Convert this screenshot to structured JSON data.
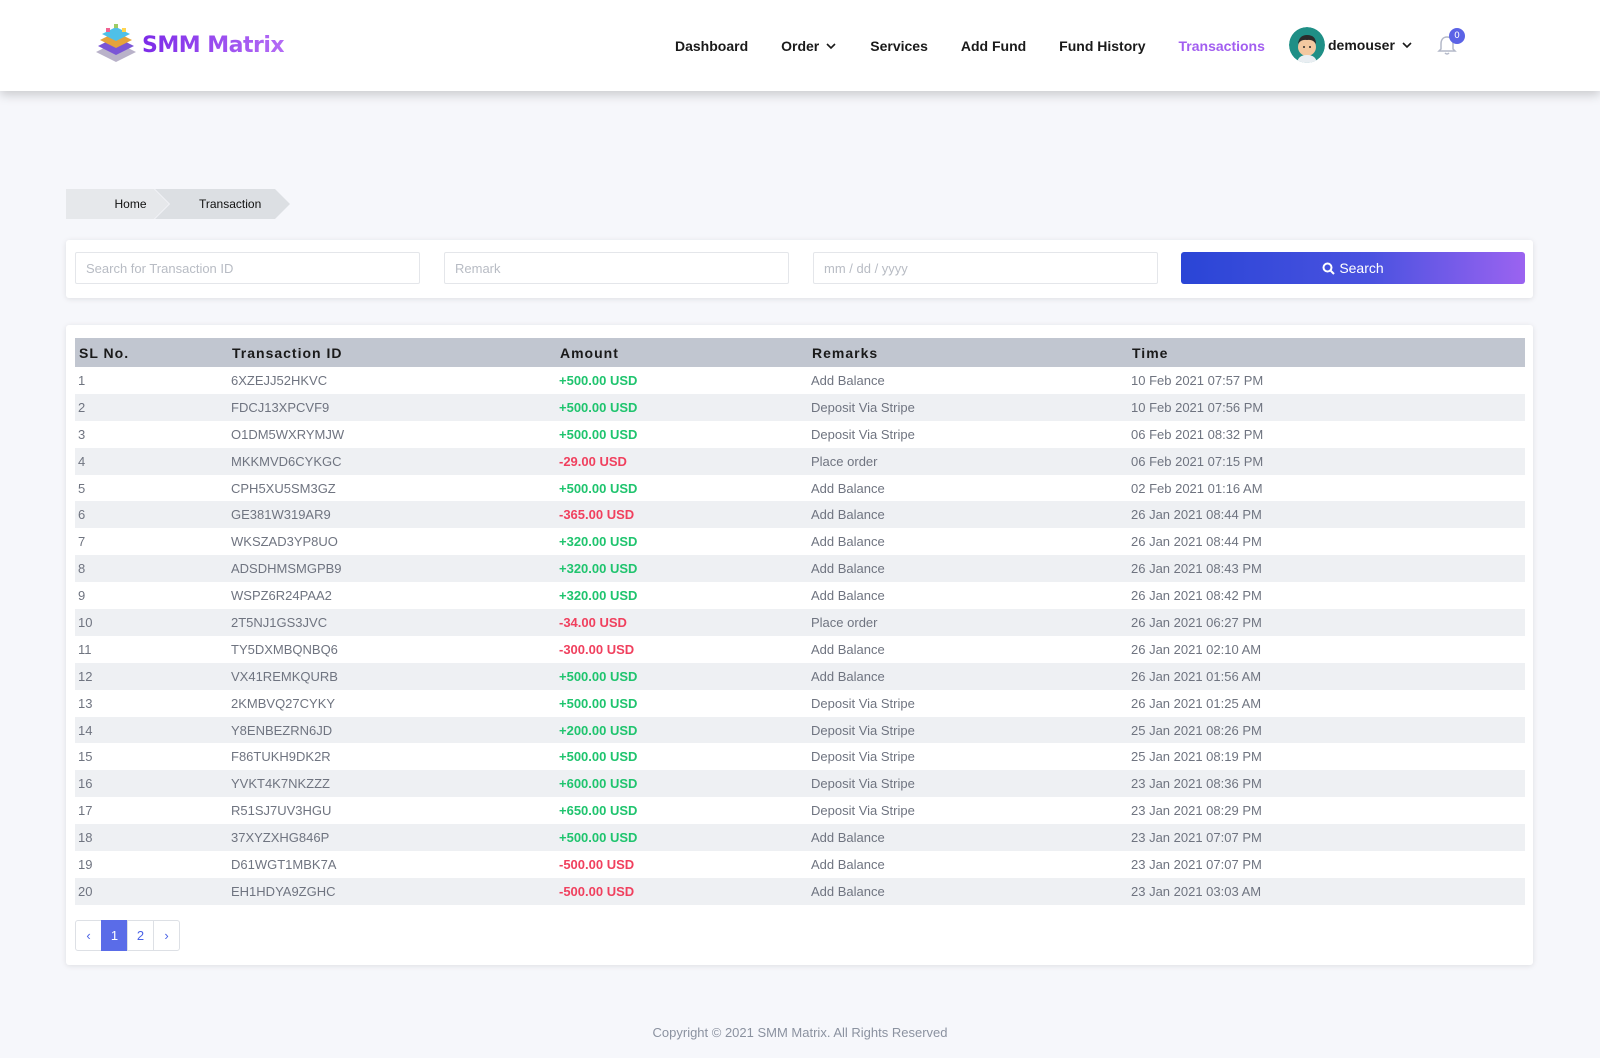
{
  "header": {
    "brand": "SMM Matrix",
    "nav": [
      {
        "label": "Dashboard",
        "active": false
      },
      {
        "label": "Order",
        "active": false,
        "dropdown": true
      },
      {
        "label": "Services",
        "active": false
      },
      {
        "label": "Add Fund",
        "active": false
      },
      {
        "label": "Fund History",
        "active": false
      },
      {
        "label": "Transactions",
        "active": true
      }
    ],
    "user": {
      "name": "demouser"
    },
    "notifications": {
      "count": "0"
    }
  },
  "breadcrumb": {
    "home": "Home",
    "current": "Transaction"
  },
  "search": {
    "transaction_placeholder": "Search for Transaction ID",
    "remark_placeholder": "Remark",
    "date_placeholder": "mm / dd / yyyy",
    "button_label": "Search"
  },
  "table": {
    "headers": [
      "SL No.",
      "Transaction ID",
      "Amount",
      "Remarks",
      "Time"
    ],
    "rows": [
      {
        "sl": "1",
        "id": "6XZEJJ52HKVC",
        "amount": "+500.00 USD",
        "remark": "Add Balance",
        "time": "10 Feb 2021 07:57 PM"
      },
      {
        "sl": "2",
        "id": "FDCJ13XPCVF9",
        "amount": "+500.00 USD",
        "remark": "Deposit Via Stripe",
        "time": "10 Feb 2021 07:56 PM"
      },
      {
        "sl": "3",
        "id": "O1DM5WXRYMJW",
        "amount": "+500.00 USD",
        "remark": "Deposit Via Stripe",
        "time": "06 Feb 2021 08:32 PM"
      },
      {
        "sl": "4",
        "id": "MKKMVD6CYKGC",
        "amount": "-29.00 USD",
        "remark": "Place order",
        "time": "06 Feb 2021 07:15 PM"
      },
      {
        "sl": "5",
        "id": "CPH5XU5SM3GZ",
        "amount": "+500.00 USD",
        "remark": "Add Balance",
        "time": "02 Feb 2021 01:16 AM"
      },
      {
        "sl": "6",
        "id": "GE381W319AR9",
        "amount": "-365.00 USD",
        "remark": "Add Balance",
        "time": "26 Jan 2021 08:44 PM"
      },
      {
        "sl": "7",
        "id": "WKSZAD3YP8UO",
        "amount": "+320.00 USD",
        "remark": "Add Balance",
        "time": "26 Jan 2021 08:44 PM"
      },
      {
        "sl": "8",
        "id": "ADSDHMSMGPB9",
        "amount": "+320.00 USD",
        "remark": "Add Balance",
        "time": "26 Jan 2021 08:43 PM"
      },
      {
        "sl": "9",
        "id": "WSPZ6R24PAA2",
        "amount": "+320.00 USD",
        "remark": "Add Balance",
        "time": "26 Jan 2021 08:42 PM"
      },
      {
        "sl": "10",
        "id": "2T5NJ1GS3JVC",
        "amount": "-34.00 USD",
        "remark": "Place order",
        "time": "26 Jan 2021 06:27 PM"
      },
      {
        "sl": "11",
        "id": "TY5DXMBQNBQ6",
        "amount": "-300.00 USD",
        "remark": "Add Balance",
        "time": "26 Jan 2021 02:10 AM"
      },
      {
        "sl": "12",
        "id": "VX41REMKQURB",
        "amount": "+500.00 USD",
        "remark": "Add Balance",
        "time": "26 Jan 2021 01:56 AM"
      },
      {
        "sl": "13",
        "id": "2KMBVQ27CYKY",
        "amount": "+500.00 USD",
        "remark": "Deposit Via Stripe",
        "time": "26 Jan 2021 01:25 AM"
      },
      {
        "sl": "14",
        "id": "Y8ENBEZRN6JD",
        "amount": "+200.00 USD",
        "remark": "Deposit Via Stripe",
        "time": "25 Jan 2021 08:26 PM"
      },
      {
        "sl": "15",
        "id": "F86TUKH9DK2R",
        "amount": "+500.00 USD",
        "remark": "Deposit Via Stripe",
        "time": "25 Jan 2021 08:19 PM"
      },
      {
        "sl": "16",
        "id": "YVKT4K7NKZZZ",
        "amount": "+600.00 USD",
        "remark": "Deposit Via Stripe",
        "time": "23 Jan 2021 08:36 PM"
      },
      {
        "sl": "17",
        "id": "R51SJ7UV3HGU",
        "amount": "+650.00 USD",
        "remark": "Deposit Via Stripe",
        "time": "23 Jan 2021 08:29 PM"
      },
      {
        "sl": "18",
        "id": "37XYZXHG846P",
        "amount": "+500.00 USD",
        "remark": "Add Balance",
        "time": "23 Jan 2021 07:07 PM"
      },
      {
        "sl": "19",
        "id": "D61WGT1MBK7A",
        "amount": "-500.00 USD",
        "remark": "Add Balance",
        "time": "23 Jan 2021 07:07 PM"
      },
      {
        "sl": "20",
        "id": "EH1HDYA9ZGHC",
        "amount": "-500.00 USD",
        "remark": "Add Balance",
        "time": "23 Jan 2021 03:03 AM"
      }
    ]
  },
  "pagination": {
    "prev": "‹",
    "pages": [
      "1",
      "2"
    ],
    "current": "1",
    "next": "›"
  },
  "footer": {
    "copyright": "Copyright © 2021 SMM Matrix. All Rights Reserved"
  },
  "colors": {
    "accent": "#a25ef0",
    "positive": "#1fc46e",
    "negative": "#f0405e",
    "button_start": "#2a45d6",
    "button_end": "#9b63f0"
  }
}
